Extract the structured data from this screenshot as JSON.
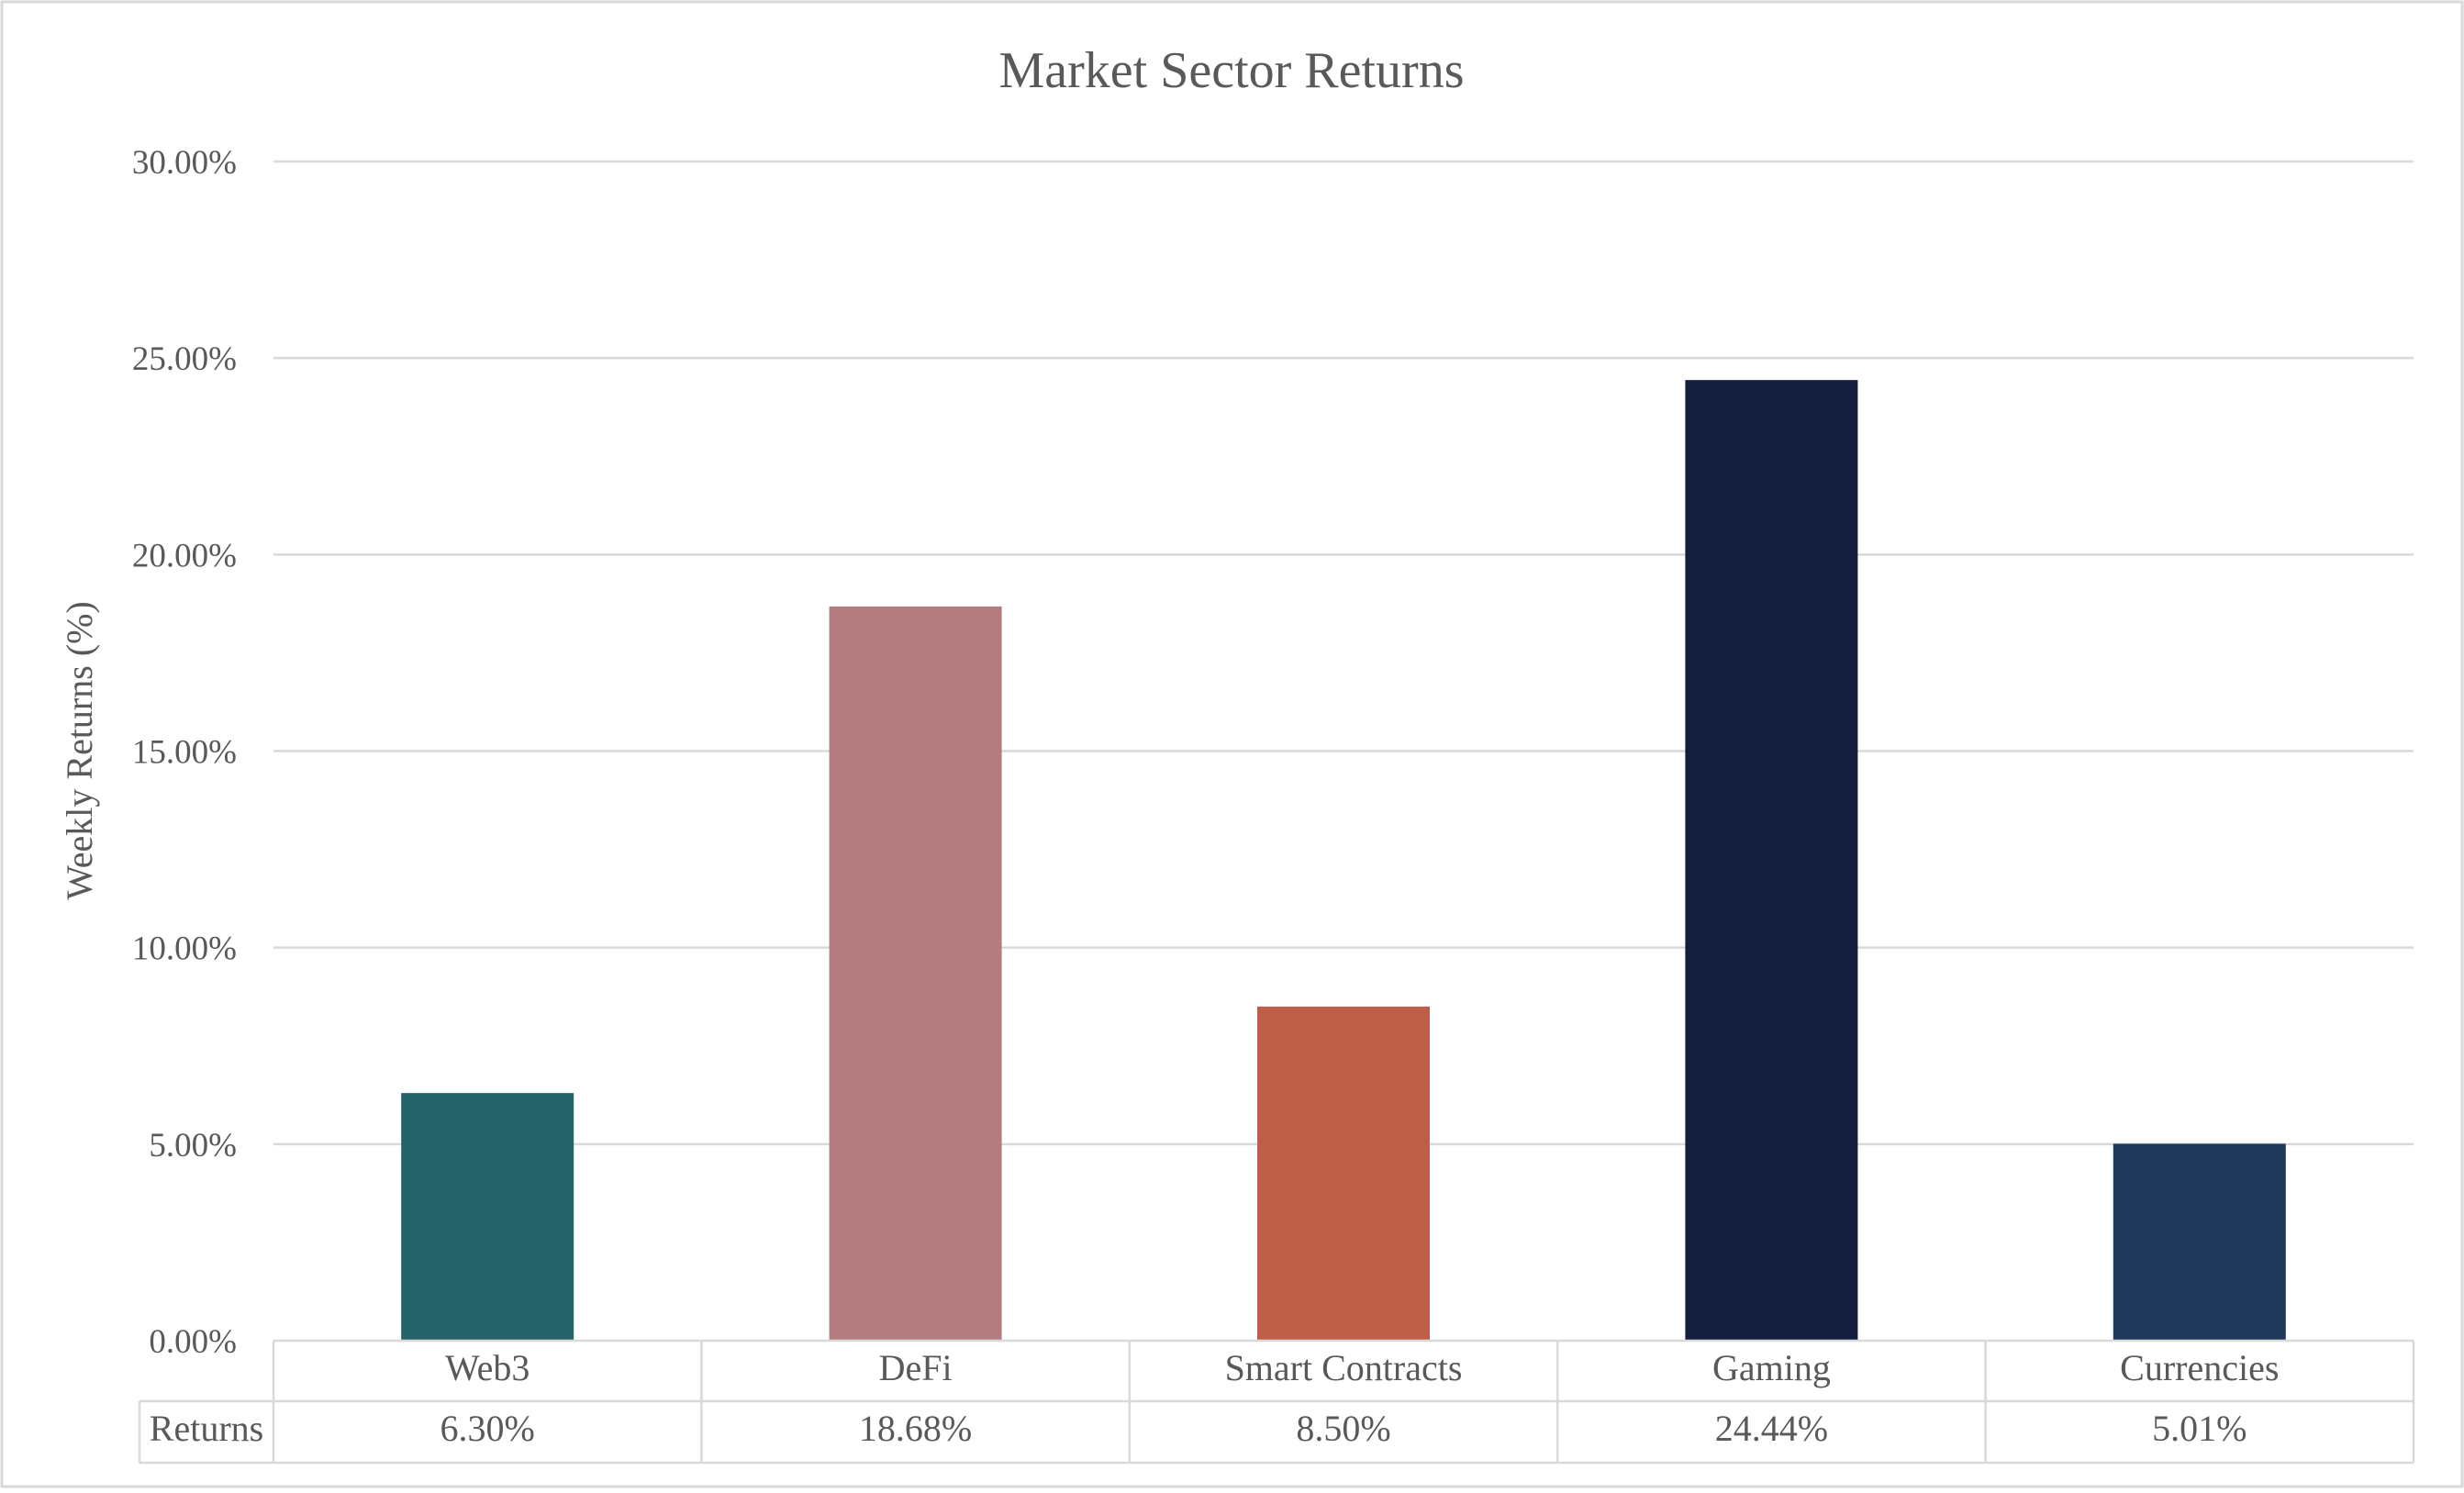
{
  "chart_data": {
    "type": "bar",
    "title": "Market Sector Returns",
    "xlabel": "",
    "ylabel": "Weekly Returns (%)",
    "ylim": [
      0,
      30
    ],
    "y_ticks": [
      "0.00%",
      "5.00%",
      "10.00%",
      "15.00%",
      "20.00%",
      "25.00%",
      "30.00%"
    ],
    "grid": true,
    "legend": "none",
    "data_table": true,
    "categories": [
      "Web3",
      "DeFi",
      "Smart Contracts",
      "Gaming",
      "Currencies"
    ],
    "series": [
      {
        "name": "Returns",
        "values": [
          6.3,
          18.68,
          8.5,
          24.44,
          5.01
        ],
        "value_labels": [
          "6.30%",
          "18.68%",
          "8.50%",
          "24.44%",
          "5.01%"
        ]
      }
    ],
    "colors": [
      "#25626A",
      "#B37C80",
      "#BE5E48",
      "#151E3C",
      "#1E395B"
    ]
  }
}
